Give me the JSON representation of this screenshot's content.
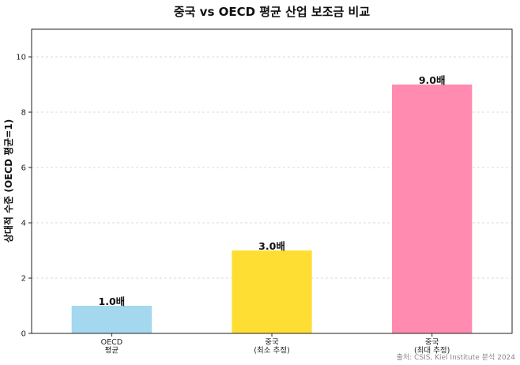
{
  "chart_data": {
    "type": "bar",
    "title": "중국 vs OECD 평균 산업 보조금 비교",
    "ylabel": "상대적 수준 (OECD 평균=1)",
    "xlabel": "",
    "ylim": [
      0,
      11
    ],
    "yticks": [
      0,
      2,
      4,
      6,
      8,
      10
    ],
    "grid": true,
    "categories": [
      {
        "lines": [
          "OECD",
          "평균"
        ],
        "value": 1.0,
        "label": "1.0배",
        "color": "#a3d8ef"
      },
      {
        "lines": [
          "중국",
          "(최소 추정)"
        ],
        "value": 3.0,
        "label": "3.0배",
        "color": "#ffde33"
      },
      {
        "lines": [
          "중국",
          "(최대 추정)"
        ],
        "value": 9.0,
        "label": "9.0배",
        "color": "#ff8cb0"
      }
    ],
    "source": "출처: CSIS, Kiel Institute 분석 2024"
  }
}
